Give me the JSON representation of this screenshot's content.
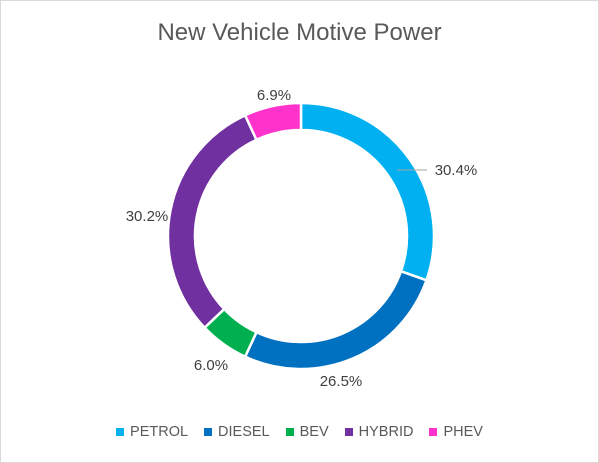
{
  "chart_data": {
    "type": "pie",
    "style": "doughnut",
    "title": "New Vehicle Motive Power",
    "categories": [
      "PETROL",
      "DIESEL",
      "BEV",
      "HYBRID",
      "PHEV"
    ],
    "values": [
      30.4,
      26.5,
      6.0,
      30.2,
      6.9
    ],
    "value_labels": [
      "30.4%",
      "26.5%",
      "6.0%",
      "30.2%",
      "6.9%"
    ],
    "colors": [
      "#00b0f0",
      "#0070c0",
      "#00b050",
      "#7030a0",
      "#ff33cc"
    ],
    "legend_position": "bottom"
  }
}
